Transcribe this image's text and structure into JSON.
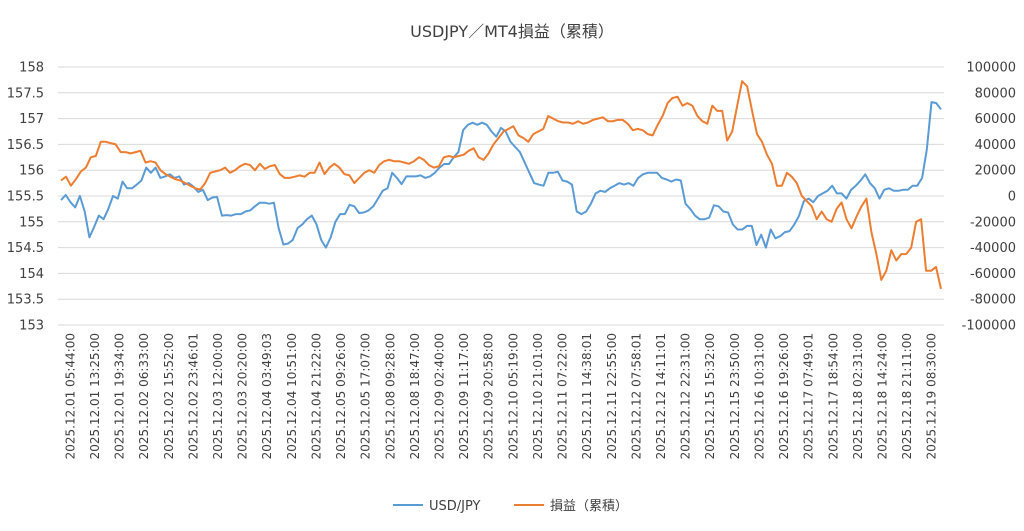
{
  "chart_data": {
    "type": "line",
    "title": "USDJPY／MT4損益（累積）",
    "legend_position": "bottom",
    "grid": true,
    "y_left": {
      "min": 153,
      "max": 158,
      "step": 0.5,
      "ticks": [
        "153",
        "153.5",
        "154",
        "154.5",
        "155",
        "155.5",
        "156",
        "156.5",
        "157",
        "157.5",
        "158"
      ]
    },
    "y_right": {
      "min": -100000,
      "max": 100000,
      "step": 20000,
      "ticks": [
        "-100000",
        "-80000",
        "-60000",
        "-40000",
        "-20000",
        "0",
        "20000",
        "40000",
        "60000",
        "80000",
        "100000"
      ]
    },
    "x_labels": [
      "2025.12.01 05:44:00",
      "2025.12.01 13:25:00",
      "2025.12.01 19:34:00",
      "2025.12.02 06:33:00",
      "2025.12.02 15:52:00",
      "2025.12.02 23:46:01",
      "2025.12.03 12:00:00",
      "2025.12.03 20:20:00",
      "2025.12.04 03:49:03",
      "2025.12.04 10:51:00",
      "2025.12.04 21:22:00",
      "2025.12.05 09:26:00",
      "2025.12.05 17:07:00",
      "2025.12.08 09:28:00",
      "2025.12.08 18:47:00",
      "2025.12.09 02:40:00",
      "2025.12.09 11:17:00",
      "2025.12.09 20:58:00",
      "2025.12.10 05:19:00",
      "2025.12.10 21:01:00",
      "2025.12.11 07:22:00",
      "2025.12.11 14:38:01",
      "2025.12.11 22:55:00",
      "2025.12.12 07:58:01",
      "2025.12.12 14:11:01",
      "2025.12.12 22:31:00",
      "2025.12.15 15:32:00",
      "2025.12.15 23:50:00",
      "2025.12.16 10:31:00",
      "2025.12.16 19:26:00",
      "2025.12.17 07:49:01",
      "2025.12.17 18:54:00",
      "2025.12.18 02:31:00",
      "2025.12.18 14:24:00",
      "2025.12.18 21:11:00",
      "2025.12.19 08:30:00"
    ],
    "series": [
      {
        "name": "USD/JPY",
        "axis": "left",
        "color": "#5b9bd5",
        "values": [
          155.42,
          155.52,
          155.38,
          155.28,
          155.5,
          155.2,
          154.7,
          154.9,
          155.12,
          155.05,
          155.25,
          155.5,
          155.45,
          155.78,
          155.65,
          155.65,
          155.72,
          155.8,
          156.05,
          155.95,
          156.05,
          155.85,
          155.88,
          155.92,
          155.85,
          155.88,
          155.72,
          155.75,
          155.68,
          155.58,
          155.62,
          155.42,
          155.47,
          155.48,
          155.12,
          155.13,
          155.12,
          155.15,
          155.15,
          155.2,
          155.22,
          155.3,
          155.37,
          155.37,
          155.35,
          155.37,
          154.88,
          154.56,
          154.58,
          154.65,
          154.88,
          154.95,
          155.05,
          155.12,
          154.95,
          154.65,
          154.5,
          154.7,
          155.0,
          155.15,
          155.15,
          155.33,
          155.3,
          155.17,
          155.18,
          155.22,
          155.3,
          155.45,
          155.6,
          155.65,
          155.95,
          155.85,
          155.73,
          155.88,
          155.88,
          155.88,
          155.9,
          155.85,
          155.88,
          155.95,
          156.05,
          156.12,
          156.12,
          156.25,
          156.35,
          156.78,
          156.88,
          156.92,
          156.88,
          156.92,
          156.88,
          156.75,
          156.65,
          156.82,
          156.75,
          156.55,
          156.45,
          156.35,
          156.15,
          155.95,
          155.75,
          155.72,
          155.7,
          155.95,
          155.95,
          155.97,
          155.8,
          155.78,
          155.72,
          155.2,
          155.15,
          155.2,
          155.35,
          155.55,
          155.6,
          155.58,
          155.65,
          155.7,
          155.75,
          155.72,
          155.75,
          155.7,
          155.85,
          155.92,
          155.95,
          155.95,
          155.95,
          155.85,
          155.82,
          155.78,
          155.82,
          155.8,
          155.35,
          155.25,
          155.12,
          155.05,
          155.05,
          155.08,
          155.32,
          155.3,
          155.2,
          155.18,
          154.95,
          154.85,
          154.85,
          154.92,
          154.92,
          154.55,
          154.75,
          154.5,
          154.85,
          154.68,
          154.72,
          154.8,
          154.82,
          154.95,
          155.12,
          155.4,
          155.45,
          155.38,
          155.5,
          155.55,
          155.6,
          155.7,
          155.55,
          155.55,
          155.45,
          155.62,
          155.7,
          155.8,
          155.92,
          155.75,
          155.65,
          155.45,
          155.62,
          155.65,
          155.6,
          155.6,
          155.62,
          155.62,
          155.7,
          155.7,
          155.85,
          156.4,
          157.32,
          157.3,
          157.18
        ]
      },
      {
        "name": "損益（累積）",
        "axis": "right",
        "color": "#ed7d31",
        "values": [
          12000,
          15000,
          8000,
          13000,
          19000,
          22000,
          30000,
          31000,
          42000,
          42000,
          41000,
          40000,
          34000,
          34000,
          33000,
          34000,
          35000,
          26000,
          27000,
          26000,
          20000,
          17000,
          15000,
          13000,
          12000,
          10000,
          8000,
          6000,
          5000,
          10000,
          18000,
          19000,
          20000,
          22000,
          18000,
          20000,
          23000,
          25000,
          24000,
          20000,
          25000,
          21000,
          23000,
          24000,
          17000,
          14000,
          14000,
          15000,
          16000,
          15000,
          18000,
          18000,
          26000,
          17000,
          22000,
          25000,
          22000,
          17000,
          16000,
          10000,
          14000,
          18000,
          20000,
          18000,
          24000,
          27000,
          28000,
          27000,
          27000,
          26000,
          25000,
          27000,
          30000,
          28000,
          24000,
          22000,
          23000,
          30000,
          31000,
          30000,
          31000,
          32000,
          35000,
          37000,
          30000,
          28000,
          33000,
          40000,
          45000,
          50000,
          52000,
          54000,
          47000,
          45000,
          42000,
          48000,
          50000,
          52000,
          62000,
          60000,
          58000,
          57000,
          57000,
          56000,
          58000,
          56000,
          57000,
          59000,
          60000,
          61000,
          58000,
          58000,
          59000,
          59000,
          56000,
          51000,
          52000,
          51000,
          48000,
          47000,
          55000,
          62000,
          72000,
          76000,
          77000,
          70000,
          72000,
          70000,
          62000,
          58000,
          56000,
          70000,
          66000,
          66000,
          43000,
          50000,
          70000,
          89000,
          85000,
          66000,
          48000,
          42000,
          32000,
          25000,
          8000,
          8000,
          18000,
          15000,
          10000,
          0,
          -4000,
          -8000,
          -18000,
          -12000,
          -18000,
          -20000,
          -10000,
          -5000,
          -18000,
          -25000,
          -16000,
          -8000,
          -2000,
          -28000,
          -45000,
          -65000,
          -58000,
          -42000,
          -50000,
          -45000,
          -45000,
          -40000,
          -20000,
          -18000,
          -58000,
          -58000,
          -55000,
          -72000
        ]
      }
    ]
  }
}
